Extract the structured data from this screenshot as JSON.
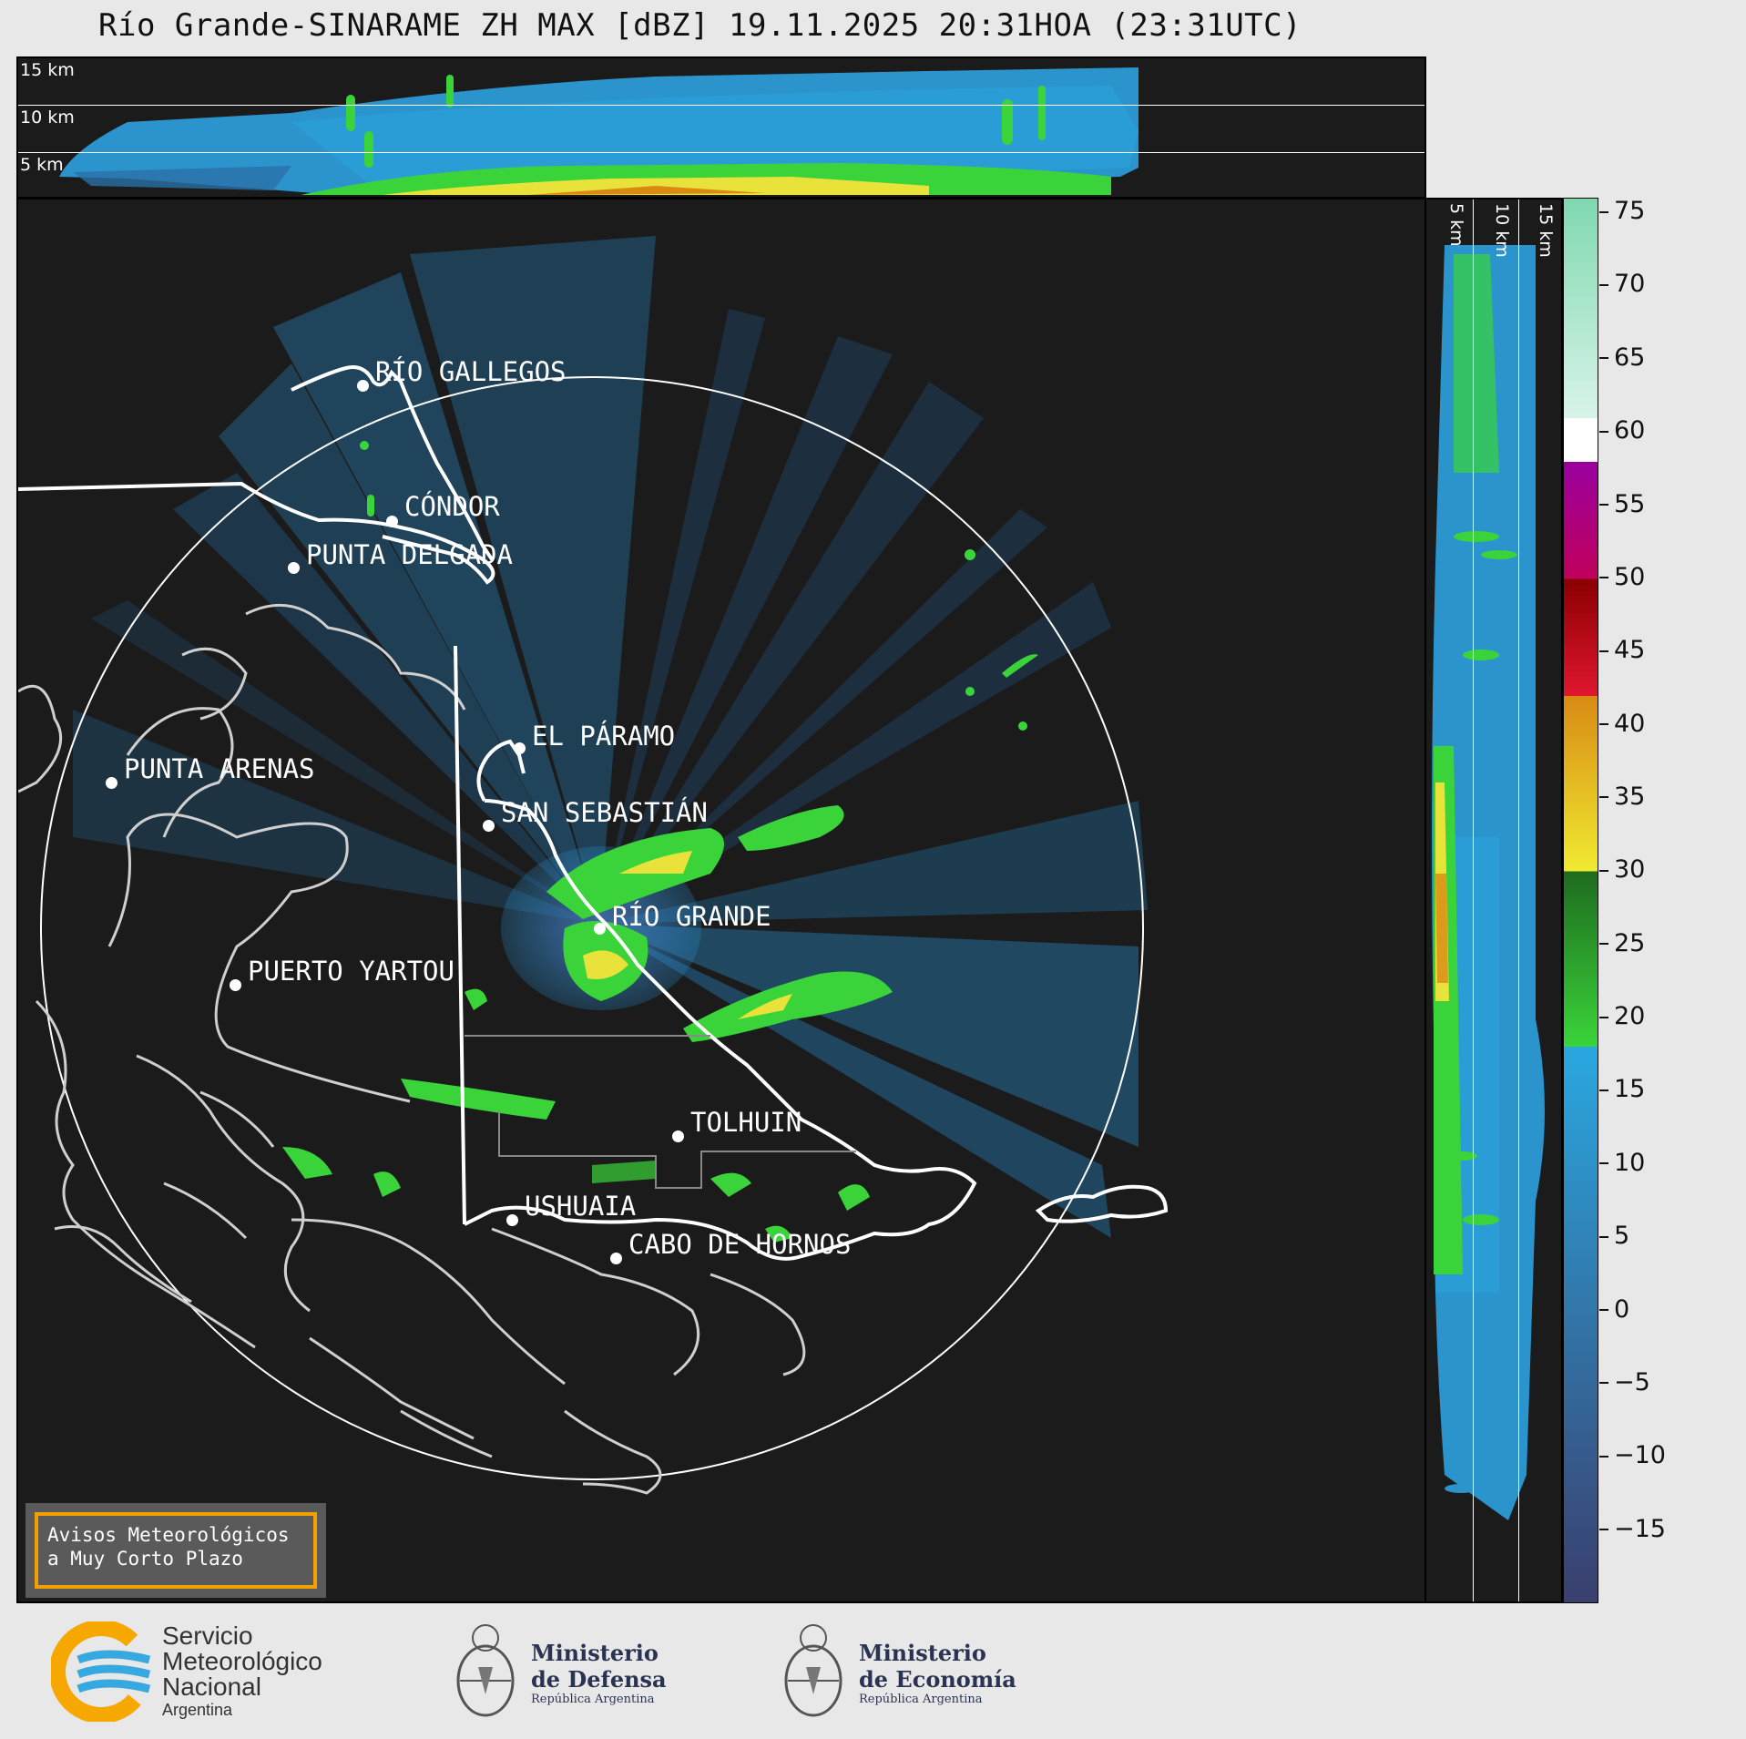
{
  "title": "Río Grande-SINARAME ZH MAX [dBZ] 19.11.2025 20:31HOA (23:31UTC)",
  "top_panel": {
    "height_labels": [
      "15 km",
      "10 km",
      "5 km"
    ]
  },
  "side_panel": {
    "height_labels": [
      "5 km",
      "10 km",
      "15 km"
    ]
  },
  "cities": [
    {
      "name": "RÍO GALLEGOS"
    },
    {
      "name": "CÓNDOR"
    },
    {
      "name": "PUNTA DELGADA"
    },
    {
      "name": "EL PÁRAMO"
    },
    {
      "name": "PUNTA ARENAS"
    },
    {
      "name": "SAN SEBASTIÁN"
    },
    {
      "name": "RÍO GRANDE"
    },
    {
      "name": "PUERTO YARTOU"
    },
    {
      "name": "TOLHUIN"
    },
    {
      "name": "USHUAIA"
    },
    {
      "name": "CABO DE HORNOS"
    }
  ],
  "colorbar": {
    "unit": "dBZ",
    "ticks": [
      "75",
      "70",
      "65",
      "60",
      "55",
      "50",
      "45",
      "40",
      "35",
      "30",
      "25",
      "20",
      "15",
      "10",
      "5",
      "0",
      "−5",
      "−10",
      "−15"
    ],
    "min": -20,
    "max": 76,
    "stops": [
      {
        "from": -20,
        "to": 18,
        "color_low": "#3a3f6e",
        "color_high": "#2aa8e0"
      },
      {
        "from": 18,
        "to": 30,
        "color_low": "#3ad43a",
        "color_high": "#1e6b1e"
      },
      {
        "from": 30,
        "to": 42,
        "color_low": "#f0ea30",
        "color_high": "#d88a14"
      },
      {
        "from": 42,
        "to": 50,
        "color_low": "#e0162e",
        "color_high": "#8a0000"
      },
      {
        "from": 50,
        "to": 58,
        "color_low": "#c0005a",
        "color_high": "#9a00a0"
      },
      {
        "from": 58,
        "to": 61,
        "color_low": "#ffffff",
        "color_high": "#ffffff"
      },
      {
        "from": 61,
        "to": 76,
        "color_low": "#d8f4e8",
        "color_high": "#7fd8b0"
      }
    ]
  },
  "notice": {
    "line1": "Avisos Meteorológicos",
    "line2": "a Muy Corto Plazo"
  },
  "logos": {
    "smn": {
      "line1": "Servicio",
      "line2": "Meteorológico",
      "line3": "Nacional",
      "line4": "Argentina"
    },
    "defensa": {
      "line1": "Ministerio",
      "line2": "de Defensa",
      "line3": "República Argentina"
    },
    "economia": {
      "line1": "Ministerio",
      "line2": "de Economía",
      "line3": "República Argentina"
    }
  }
}
